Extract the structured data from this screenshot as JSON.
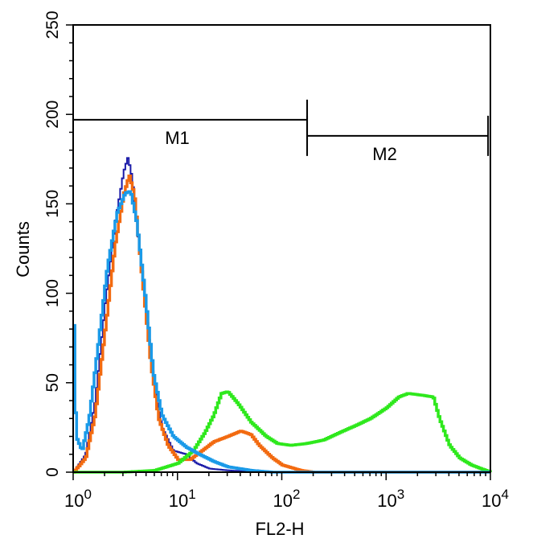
{
  "chart_data": {
    "type": "line",
    "xlabel": "FL2-H",
    "ylabel": "Counts",
    "x_scale": "log",
    "xlim": [
      1,
      10000
    ],
    "ylim": [
      0,
      250
    ],
    "x_ticks": [
      {
        "value": 1,
        "base": "10",
        "exp": "0"
      },
      {
        "value": 10,
        "base": "10",
        "exp": "1"
      },
      {
        "value": 100,
        "base": "10",
        "exp": "2"
      },
      {
        "value": 1000,
        "base": "10",
        "exp": "3"
      },
      {
        "value": 10000,
        "base": "10",
        "exp": "4"
      }
    ],
    "y_ticks": [
      0,
      50,
      100,
      150,
      200,
      250
    ],
    "grid": false,
    "legend": "none",
    "markers": [
      {
        "label": "M1",
        "x0": 1,
        "x1": 175,
        "y": 197
      },
      {
        "label": "M2",
        "x0": 175,
        "x1": 9500,
        "y": 188
      }
    ],
    "series": [
      {
        "color": "#1a1aa8",
        "points": [
          [
            1,
            0
          ],
          [
            1.3,
            10
          ],
          [
            1.6,
            40
          ],
          [
            2,
            95
          ],
          [
            2.5,
            140
          ],
          [
            3,
            168
          ],
          [
            3.3,
            176
          ],
          [
            3.6,
            165
          ],
          [
            4,
            140
          ],
          [
            5,
            85
          ],
          [
            6,
            45
          ],
          [
            7,
            25
          ],
          [
            9,
            12
          ],
          [
            12,
            10
          ],
          [
            15,
            5
          ],
          [
            20,
            2
          ],
          [
            30,
            1
          ],
          [
            60,
            0
          ]
        ]
      },
      {
        "color": "#f26a10",
        "points": [
          [
            1,
            0
          ],
          [
            1.3,
            8
          ],
          [
            1.6,
            32
          ],
          [
            2,
            80
          ],
          [
            2.5,
            128
          ],
          [
            3,
            155
          ],
          [
            3.4,
            166
          ],
          [
            3.8,
            155
          ],
          [
            4.5,
            110
          ],
          [
            5.5,
            60
          ],
          [
            6.5,
            30
          ],
          [
            8,
            15
          ],
          [
            10,
            7
          ],
          [
            13,
            7
          ],
          [
            17,
            12
          ],
          [
            22,
            17
          ],
          [
            30,
            20
          ],
          [
            40,
            23
          ],
          [
            50,
            21
          ],
          [
            60,
            15
          ],
          [
            80,
            8
          ],
          [
            100,
            4
          ],
          [
            150,
            1
          ],
          [
            200,
            0
          ],
          [
            3000,
            0
          ]
        ]
      },
      {
        "color": "#2ee81c",
        "points": [
          [
            1,
            0
          ],
          [
            3,
            0
          ],
          [
            6,
            1
          ],
          [
            10,
            5
          ],
          [
            14,
            12
          ],
          [
            18,
            22
          ],
          [
            22,
            32
          ],
          [
            26,
            44
          ],
          [
            30,
            45
          ],
          [
            38,
            38
          ],
          [
            50,
            28
          ],
          [
            70,
            20
          ],
          [
            90,
            16
          ],
          [
            120,
            15
          ],
          [
            170,
            16
          ],
          [
            250,
            18
          ],
          [
            350,
            22
          ],
          [
            500,
            26
          ],
          [
            700,
            30
          ],
          [
            1000,
            36
          ],
          [
            1300,
            42
          ],
          [
            1600,
            44
          ],
          [
            2200,
            43
          ],
          [
            2800,
            42
          ],
          [
            3200,
            30
          ],
          [
            4000,
            15
          ],
          [
            5000,
            8
          ],
          [
            6500,
            4
          ],
          [
            8000,
            2
          ],
          [
            10000,
            0
          ]
        ]
      },
      {
        "color": "#1a9ae8",
        "points": [
          [
            1,
            82
          ],
          [
            1.05,
            20
          ],
          [
            1.2,
            12
          ],
          [
            1.4,
            30
          ],
          [
            1.7,
            70
          ],
          [
            2.1,
            115
          ],
          [
            2.6,
            145
          ],
          [
            3.1,
            156
          ],
          [
            3.5,
            157
          ],
          [
            4,
            140
          ],
          [
            4.8,
            100
          ],
          [
            5.8,
            55
          ],
          [
            7,
            32
          ],
          [
            9,
            20
          ],
          [
            12,
            14
          ],
          [
            16,
            10
          ],
          [
            22,
            6
          ],
          [
            30,
            3
          ],
          [
            50,
            1
          ],
          [
            80,
            0
          ]
        ]
      }
    ]
  }
}
